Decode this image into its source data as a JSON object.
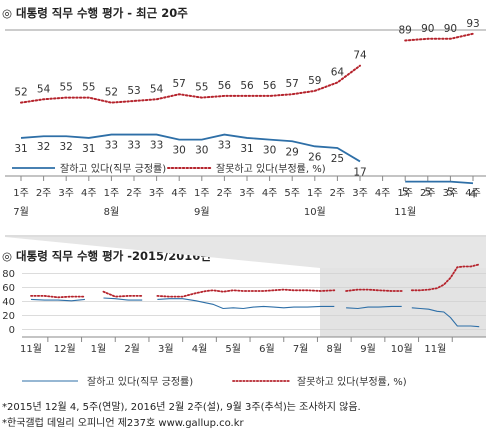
{
  "chart_data": [
    {
      "type": "line",
      "title": "대통령 직무 수행 평가 - 최근 20주",
      "title_mark": "◎",
      "x_labels": [
        {
          "week": "1주",
          "month": "7월"
        },
        {
          "week": "2주",
          "month": ""
        },
        {
          "week": "3주",
          "month": ""
        },
        {
          "week": "4주",
          "month": ""
        },
        {
          "week": "1주",
          "month": "8월"
        },
        {
          "week": "2주",
          "month": ""
        },
        {
          "week": "3주",
          "month": ""
        },
        {
          "week": "4주",
          "month": ""
        },
        {
          "week": "1주",
          "month": "9월"
        },
        {
          "week": "2주",
          "month": ""
        },
        {
          "week": "3주",
          "month": ""
        },
        {
          "week": "4주",
          "month": ""
        },
        {
          "week": "5주",
          "month": ""
        },
        {
          "week": "1주",
          "month": "10월"
        },
        {
          "week": "2주",
          "month": ""
        },
        {
          "week": "3주",
          "month": ""
        },
        {
          "week": "4주",
          "month": ""
        },
        {
          "week": "1주",
          "month": "11월"
        },
        {
          "week": "2주",
          "month": ""
        },
        {
          "week": "3주",
          "month": ""
        },
        {
          "week": "4주",
          "month": ""
        }
      ],
      "series": [
        {
          "name": "잘하고 있다(직무 긍정률)",
          "style": "solid",
          "color": "#2e6fa7",
          "values": [
            31,
            32,
            32,
            31,
            33,
            33,
            33,
            30,
            30,
            33,
            31,
            30,
            29,
            26,
            25,
            17,
            5,
            5,
            5,
            4
          ],
          "x_index": [
            0,
            1,
            2,
            3,
            4,
            5,
            6,
            7,
            8,
            9,
            10,
            11,
            12,
            13,
            14,
            15,
            17,
            18,
            19,
            20
          ]
        },
        {
          "name": "잘못하고 있다(부정률, %)",
          "style": "dotted",
          "color": "#b5232c",
          "values": [
            52,
            54,
            55,
            55,
            52,
            53,
            54,
            57,
            55,
            56,
            56,
            56,
            57,
            59,
            64,
            74,
            89,
            90,
            90,
            93
          ],
          "x_index": [
            0,
            1,
            2,
            3,
            4,
            5,
            6,
            7,
            8,
            9,
            10,
            11,
            12,
            13,
            14,
            15,
            17,
            18,
            19,
            20
          ]
        }
      ]
    },
    {
      "type": "line",
      "title": "대통령 직무 수행 평가 -2015/2016년",
      "title_mark": "◎",
      "yticks": [
        0,
        20,
        40,
        60,
        80
      ],
      "ylim": [
        0,
        90
      ],
      "x_labels": [
        "11월",
        "12월",
        "1월",
        "2월",
        "3월",
        "4월",
        "5월",
        "6월",
        "7월",
        "8월",
        "9월",
        "10월",
        "11월"
      ],
      "series": [
        {
          "name": "잘하고 있다(직무 긍정률)",
          "style": "solid",
          "color": "#2e6fa7",
          "segments": [
            [
              [
                0.0,
                43
              ],
              [
                0.4,
                42
              ],
              [
                0.8,
                42
              ],
              [
                1.2,
                41
              ],
              [
                1.6,
                43
              ]
            ],
            [
              [
                2.15,
                45
              ],
              [
                2.5,
                44
              ],
              [
                2.9,
                42
              ],
              [
                3.3,
                42
              ]
            ],
            [
              [
                3.75,
                43
              ],
              [
                4.1,
                44
              ],
              [
                4.5,
                44
              ],
              [
                4.9,
                41
              ],
              [
                5.2,
                38
              ],
              [
                5.4,
                36
              ],
              [
                5.7,
                30
              ],
              [
                6.0,
                31
              ],
              [
                6.3,
                30
              ],
              [
                6.6,
                32
              ],
              [
                6.9,
                33
              ],
              [
                7.2,
                32
              ],
              [
                7.5,
                31
              ],
              [
                7.8,
                32
              ],
              [
                8.2,
                32
              ],
              [
                8.6,
                33
              ],
              [
                9.0,
                33
              ]
            ],
            [
              [
                9.35,
                31
              ],
              [
                9.7,
                30
              ],
              [
                10.0,
                32
              ],
              [
                10.3,
                32
              ],
              [
                10.7,
                33
              ],
              [
                11.0,
                33
              ]
            ],
            [
              [
                11.3,
                31
              ],
              [
                11.55,
                30
              ],
              [
                11.8,
                29
              ],
              [
                12.05,
                26
              ],
              [
                12.25,
                25
              ],
              [
                12.45,
                17
              ],
              [
                12.65,
                5
              ],
              [
                12.85,
                5
              ],
              [
                13.05,
                5
              ],
              [
                13.3,
                4
              ]
            ]
          ]
        },
        {
          "name": "잘못하고 있다(부정률, %)",
          "style": "dotted",
          "color": "#b5232c",
          "segments": [
            [
              [
                0.0,
                48
              ],
              [
                0.4,
                48
              ],
              [
                0.8,
                46
              ],
              [
                1.2,
                47
              ],
              [
                1.6,
                47
              ]
            ],
            [
              [
                2.15,
                54
              ],
              [
                2.5,
                47
              ],
              [
                2.9,
                48
              ],
              [
                3.3,
                48
              ]
            ],
            [
              [
                3.75,
                48
              ],
              [
                4.1,
                47
              ],
              [
                4.5,
                47
              ],
              [
                4.9,
                52
              ],
              [
                5.2,
                55
              ],
              [
                5.4,
                56
              ],
              [
                5.7,
                54
              ],
              [
                6.0,
                56
              ],
              [
                6.3,
                55
              ],
              [
                6.6,
                55
              ],
              [
                6.9,
                55
              ],
              [
                7.2,
                56
              ],
              [
                7.5,
                57
              ],
              [
                7.8,
                56
              ],
              [
                8.2,
                56
              ],
              [
                8.6,
                55
              ],
              [
                9.0,
                56
              ]
            ],
            [
              [
                9.35,
                55
              ],
              [
                9.7,
                57
              ],
              [
                10.0,
                57
              ],
              [
                10.3,
                56
              ],
              [
                10.7,
                55
              ],
              [
                11.0,
                55
              ]
            ],
            [
              [
                11.3,
                56
              ],
              [
                11.55,
                56
              ],
              [
                11.8,
                57
              ],
              [
                12.05,
                59
              ],
              [
                12.25,
                64
              ],
              [
                12.45,
                74
              ],
              [
                12.65,
                89
              ],
              [
                12.85,
                90
              ],
              [
                13.05,
                90
              ],
              [
                13.3,
                93
              ]
            ]
          ]
        }
      ]
    }
  ],
  "footnotes": [
    "*2015년 12월 4, 5주(연말), 2016년 2월 2주(설), 9월 3주(추석)는 조사하지 않음.",
    "*한국갤럽 데일리 오피니언 제237호 www.gallup.co.kr"
  ]
}
